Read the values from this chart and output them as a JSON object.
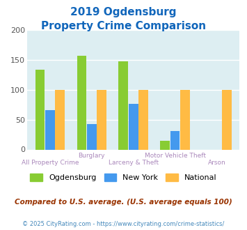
{
  "title_line1": "2019 Ogdensburg",
  "title_line2": "Property Crime Comparison",
  "categories": [
    "All Property Crime",
    "Burglary",
    "Larceny & Theft",
    "Motor Vehicle Theft",
    "Arson"
  ],
  "ogdensburg": [
    133,
    157,
    147,
    14,
    0
  ],
  "new_york": [
    66,
    43,
    76,
    31,
    0
  ],
  "national": [
    100,
    100,
    100,
    100,
    100
  ],
  "bar_colors": {
    "ogdensburg": "#88cc33",
    "new_york": "#4499ee",
    "national": "#ffbb44"
  },
  "ylim": [
    0,
    200
  ],
  "yticks": [
    0,
    50,
    100,
    150,
    200
  ],
  "background_color": "#ddeef2",
  "title_color": "#1166bb",
  "legend_labels": [
    "Ogdensburg",
    "New York",
    "National"
  ],
  "footnote1": "Compared to U.S. average. (U.S. average equals 100)",
  "footnote2": "© 2025 CityRating.com - https://www.cityrating.com/crime-statistics/",
  "footnote1_color": "#993300",
  "footnote2_color": "#4488bb",
  "xlabel_color": "#aa88bb",
  "xtop_labels": [
    "",
    "Burglary",
    "",
    "Motor Vehicle Theft",
    ""
  ],
  "xbot_labels": [
    "All Property Crime",
    "",
    "Larceny & Theft",
    "",
    "Arson"
  ],
  "grid_color": "#ffffff"
}
